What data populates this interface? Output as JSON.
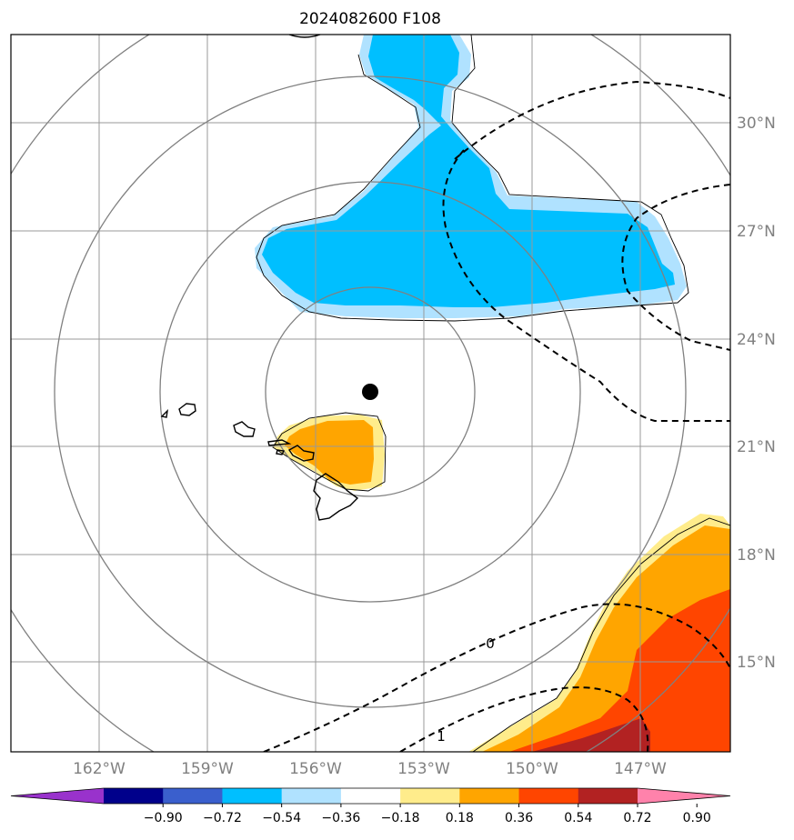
{
  "title": "2024082600 F108",
  "lon_labels": [
    "162°W",
    "159°W",
    "156°W",
    "153°W",
    "150°W",
    "147°W"
  ],
  "lat_labels": [
    "30°N",
    "27°N",
    "24°N",
    "21°N",
    "18°N",
    "15°N"
  ],
  "contour_labels": [
    "0",
    "1"
  ],
  "colorbar": {
    "ticks": [
      "−0.90",
      "−0.72",
      "−0.54",
      "−0.36",
      "−0.18",
      "0.18",
      "0.36",
      "0.54",
      "0.72",
      "0.90"
    ],
    "colors": [
      "#9932cc",
      "#00008b",
      "#3a5fcd",
      "#00bfff",
      "#b0e2ff",
      "#ffffff",
      "#ffec8b",
      "#ffa500",
      "#ff4500",
      "#b22222",
      "#ff82ab"
    ]
  },
  "fill_colors": {
    "neg_strong": "#00bfff",
    "neg_weak": "#b0e2ff",
    "pos_weak": "#ffec8b",
    "pos_mid": "#ffa500",
    "pos_strong": "#ff4500",
    "pos_max": "#b22222"
  },
  "center_marker": "storm-center-dot"
}
